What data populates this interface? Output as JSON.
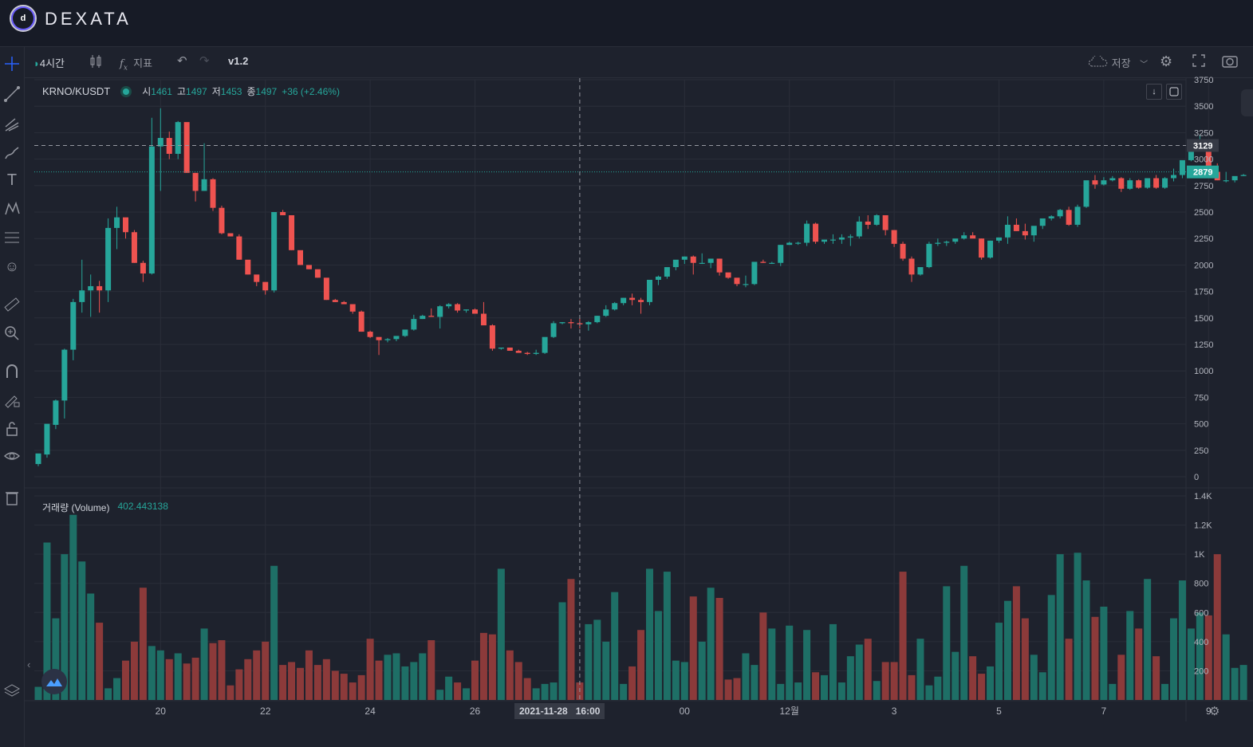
{
  "brand": {
    "logo_mark": "d",
    "name": "DEXATA"
  },
  "toolbar": {
    "interval": "4시간",
    "indicators_label": "지표",
    "version": "v1.2",
    "save_label": "저장",
    "icons": [
      "candles-icon",
      "fx-icon",
      "undo-icon",
      "redo-icon",
      "cloud-icon",
      "gear-icon",
      "fullscreen-icon",
      "camera-icon"
    ]
  },
  "left_tools": [
    "crosshair-icon",
    "trendline-icon",
    "pitchfork-icon",
    "brush-icon",
    "text-icon",
    "pattern-icon",
    "fib-icon",
    "emoji-icon",
    "ruler-icon",
    "zoom-in-icon",
    "magnet-icon",
    "pencil-lock-icon",
    "lock-icon",
    "eye-icon",
    "trash-icon",
    "layers-icon"
  ],
  "legend": {
    "symbol": "KRNO/KUSDT",
    "o_label": "시",
    "o": "1461",
    "h_label": "고",
    "h": "1497",
    "l_label": "저",
    "l": "1453",
    "c_label": "종",
    "c": "1497",
    "change": "+36 (+2.46%)"
  },
  "volume_legend": {
    "name": "거래량 (Volume)",
    "value": "402.443138"
  },
  "crosshair": {
    "date": "2021-11-28",
    "time": "16:00",
    "price_label": "3129",
    "price": 3129
  },
  "last_price": {
    "label": "2879",
    "price": 2879
  },
  "colors": {
    "up": "#26a69a",
    "down": "#ef5350",
    "up_vol": "#1e6f66",
    "down_vol": "#8c3a3a",
    "bg": "#1e222d",
    "grid": "#2a2e39"
  },
  "chart_data": {
    "type": "candlestick",
    "price_axis": {
      "ticks": [
        0,
        250,
        500,
        750,
        1000,
        1250,
        1500,
        1750,
        2000,
        2250,
        2500,
        2750,
        3000,
        3250,
        3500,
        3750
      ],
      "range": [
        0,
        3750
      ]
    },
    "volume_axis": {
      "ticks": [
        200,
        400,
        600,
        800,
        1000,
        1200,
        1400
      ],
      "tick_labels": [
        "200",
        "400",
        "600",
        "800",
        "1K",
        "1.2K",
        "1.4K"
      ],
      "range": [
        0,
        1400
      ]
    },
    "x_axis": {
      "ticks": [
        {
          "bar": 14,
          "label": "20"
        },
        {
          "bar": 26,
          "label": "22"
        },
        {
          "bar": 38,
          "label": "24"
        },
        {
          "bar": 50,
          "label": "26"
        },
        {
          "bar": 74,
          "label": "00"
        },
        {
          "bar": 86,
          "label": "12월"
        },
        {
          "bar": 98,
          "label": "3"
        },
        {
          "bar": 110,
          "label": "5"
        },
        {
          "bar": 122,
          "label": "7"
        },
        {
          "bar": 134,
          "label": "9"
        }
      ]
    },
    "crosshair_bar": 62,
    "bars": [
      [
        120,
        210,
        100,
        220,
        90
      ],
      [
        210,
        490,
        180,
        500,
        1080
      ],
      [
        490,
        730,
        450,
        720,
        560
      ],
      [
        720,
        1210,
        550,
        1200,
        1000
      ],
      [
        1200,
        1680,
        1100,
        1650,
        1270
      ],
      [
        1650,
        2050,
        1550,
        1760,
        950
      ],
      [
        1760,
        1910,
        1510,
        1800,
        730
      ],
      [
        1800,
        1850,
        1550,
        1760,
        530
      ],
      [
        1760,
        2440,
        1650,
        2350,
        80
      ],
      [
        2350,
        2550,
        2150,
        2450,
        150
      ],
      [
        2450,
        2370,
        2250,
        2310,
        270
      ],
      [
        2310,
        2330,
        2020,
        2020,
        400
      ],
      [
        2020,
        2040,
        1840,
        1920,
        770
      ],
      [
        1920,
        3390,
        1910,
        3120,
        370
      ],
      [
        3120,
        3480,
        2700,
        3200,
        340
      ],
      [
        3200,
        3260,
        3000,
        3050,
        280
      ],
      [
        3050,
        3360,
        3000,
        3350,
        320
      ],
      [
        3350,
        3320,
        2880,
        2870,
        250
      ],
      [
        2870,
        2850,
        2600,
        2700,
        290
      ],
      [
        2700,
        3150,
        2700,
        2810,
        490
      ],
      [
        2810,
        2820,
        2510,
        2540,
        390
      ],
      [
        2540,
        2560,
        2290,
        2300,
        410
      ],
      [
        2300,
        2290,
        2270,
        2270,
        100
      ],
      [
        2270,
        2290,
        2050,
        2050,
        210
      ],
      [
        2050,
        2010,
        1910,
        1910,
        280
      ],
      [
        1910,
        1870,
        1800,
        1840,
        340
      ],
      [
        1840,
        1780,
        1720,
        1760,
        400
      ],
      [
        1760,
        2500,
        1740,
        2500,
        920
      ],
      [
        2500,
        2520,
        2470,
        2470,
        240
      ],
      [
        2470,
        2460,
        2140,
        2140,
        260
      ],
      [
        2140,
        2130,
        2000,
        2000,
        220
      ],
      [
        2000,
        1990,
        1960,
        1960,
        340
      ],
      [
        1960,
        1900,
        1880,
        1880,
        240
      ],
      [
        1880,
        1820,
        1670,
        1670,
        280
      ],
      [
        1670,
        1680,
        1650,
        1650,
        200
      ],
      [
        1650,
        1660,
        1630,
        1630,
        180
      ],
      [
        1630,
        1610,
        1540,
        1560,
        120
      ],
      [
        1560,
        1570,
        1370,
        1370,
        170
      ],
      [
        1370,
        1380,
        1310,
        1320,
        420
      ],
      [
        1320,
        1300,
        1150,
        1290,
        270
      ],
      [
        1290,
        1310,
        1270,
        1300,
        310
      ],
      [
        1300,
        1320,
        1280,
        1330,
        320
      ],
      [
        1330,
        1380,
        1320,
        1390,
        230
      ],
      [
        1390,
        1530,
        1380,
        1490,
        260
      ],
      [
        1490,
        1530,
        1490,
        1520,
        320
      ],
      [
        1520,
        1590,
        1510,
        1510,
        410
      ],
      [
        1510,
        1620,
        1400,
        1610,
        70
      ],
      [
        1610,
        1640,
        1590,
        1630,
        160
      ],
      [
        1630,
        1640,
        1550,
        1570,
        120
      ],
      [
        1570,
        1580,
        1550,
        1580,
        80
      ],
      [
        1580,
        1590,
        1570,
        1540,
        270
      ],
      [
        1540,
        1650,
        1490,
        1430,
        460
      ],
      [
        1430,
        1440,
        1190,
        1210,
        450
      ],
      [
        1210,
        1220,
        1200,
        1220,
        900
      ],
      [
        1220,
        1220,
        1200,
        1190,
        340
      ],
      [
        1190,
        1200,
        1180,
        1170,
        260
      ],
      [
        1170,
        1180,
        1150,
        1160,
        150
      ],
      [
        1160,
        1200,
        1150,
        1170,
        80
      ],
      [
        1170,
        1310,
        1160,
        1320,
        110
      ],
      [
        1320,
        1470,
        1310,
        1450,
        120
      ],
      [
        1450,
        1460,
        1440,
        1460,
        670
      ],
      [
        1460,
        1490,
        1400,
        1450,
        830
      ],
      [
        1450,
        1500,
        1400,
        1440,
        120
      ],
      [
        1440,
        1470,
        1380,
        1460,
        520
      ],
      [
        1460,
        1520,
        1450,
        1520,
        550
      ],
      [
        1520,
        1620,
        1510,
        1580,
        400
      ],
      [
        1580,
        1650,
        1570,
        1640,
        740
      ],
      [
        1640,
        1690,
        1620,
        1690,
        110
      ],
      [
        1690,
        1730,
        1620,
        1670,
        230
      ],
      [
        1670,
        1690,
        1540,
        1650,
        480
      ],
      [
        1650,
        1860,
        1620,
        1860,
        900
      ],
      [
        1860,
        1900,
        1810,
        1890,
        610
      ],
      [
        1890,
        1960,
        1870,
        1980,
        880
      ],
      [
        1980,
        2040,
        1950,
        2050,
        270
      ],
      [
        2050,
        2080,
        2010,
        2080,
        260
      ],
      [
        2080,
        2090,
        1910,
        2020,
        710
      ],
      [
        2020,
        2110,
        2010,
        2020,
        400
      ],
      [
        2020,
        2040,
        1970,
        2060,
        770
      ],
      [
        2060,
        2060,
        1900,
        1930,
        700
      ],
      [
        1930,
        1920,
        1870,
        1880,
        140
      ],
      [
        1880,
        1870,
        1800,
        1820,
        150
      ],
      [
        1820,
        1900,
        1790,
        1820,
        320
      ],
      [
        1820,
        2010,
        1810,
        2030,
        240
      ],
      [
        2030,
        2050,
        2020,
        2020,
        600
      ],
      [
        2020,
        2030,
        2010,
        2020,
        490
      ],
      [
        2020,
        2190,
        1990,
        2190,
        110
      ],
      [
        2190,
        2220,
        2190,
        2210,
        510
      ],
      [
        2210,
        2220,
        2190,
        2210,
        120
      ],
      [
        2210,
        2420,
        2180,
        2390,
        480
      ],
      [
        2390,
        2400,
        2200,
        2220,
        190
      ],
      [
        2220,
        2240,
        2200,
        2240,
        170
      ],
      [
        2240,
        2290,
        2200,
        2240,
        520
      ],
      [
        2240,
        2290,
        2200,
        2260,
        120
      ],
      [
        2260,
        2290,
        2180,
        2270,
        300
      ],
      [
        2270,
        2460,
        2250,
        2410,
        380
      ],
      [
        2410,
        2470,
        2340,
        2380,
        420
      ],
      [
        2380,
        2480,
        2370,
        2470,
        130
      ],
      [
        2470,
        2470,
        2280,
        2330,
        260
      ],
      [
        2330,
        2330,
        2170,
        2200,
        260
      ],
      [
        2200,
        2220,
        2040,
        2060,
        880
      ],
      [
        2060,
        2080,
        1840,
        1910,
        170
      ],
      [
        1910,
        1970,
        1900,
        1980,
        420
      ],
      [
        1980,
        2220,
        1970,
        2200,
        100
      ],
      [
        2200,
        2250,
        2180,
        2210,
        160
      ],
      [
        2210,
        2230,
        2180,
        2220,
        780
      ],
      [
        2220,
        2240,
        2200,
        2250,
        330
      ],
      [
        2250,
        2310,
        2240,
        2280,
        920
      ],
      [
        2280,
        2310,
        2260,
        2250,
        300
      ],
      [
        2250,
        2250,
        2050,
        2070,
        180
      ],
      [
        2070,
        2230,
        2060,
        2230,
        230
      ],
      [
        2230,
        2250,
        2210,
        2260,
        530
      ],
      [
        2260,
        2460,
        2200,
        2380,
        680
      ],
      [
        2380,
        2440,
        2320,
        2320,
        780
      ],
      [
        2320,
        2390,
        2240,
        2280,
        560
      ],
      [
        2280,
        2310,
        2220,
        2370,
        310
      ],
      [
        2370,
        2390,
        2340,
        2440,
        190
      ],
      [
        2440,
        2470,
        2420,
        2460,
        720
      ],
      [
        2460,
        2530,
        2440,
        2520,
        1000
      ],
      [
        2520,
        2550,
        2370,
        2380,
        420
      ],
      [
        2380,
        2570,
        2360,
        2550,
        1010
      ],
      [
        2550,
        2790,
        2540,
        2800,
        820
      ],
      [
        2800,
        2850,
        2720,
        2760,
        570
      ],
      [
        2760,
        2830,
        2750,
        2800,
        640
      ],
      [
        2800,
        2840,
        2790,
        2820,
        110
      ],
      [
        2820,
        2830,
        2690,
        2720,
        310
      ],
      [
        2720,
        2820,
        2710,
        2800,
        610
      ],
      [
        2800,
        2810,
        2720,
        2730,
        490
      ],
      [
        2730,
        2820,
        2720,
        2820,
        830
      ],
      [
        2820,
        2850,
        2720,
        2730,
        300
      ],
      [
        2730,
        2830,
        2720,
        2820,
        110
      ],
      [
        2820,
        2910,
        2790,
        2850,
        560
      ],
      [
        2850,
        2980,
        2820,
        2990,
        820
      ],
      [
        2990,
        3160,
        2980,
        3160,
        490
      ],
      [
        3160,
        3230,
        3150,
        3170,
        600
      ],
      [
        3170,
        3180,
        3150,
        2880,
        580
      ],
      [
        2880,
        2960,
        2800,
        2800,
        1000
      ],
      [
        2800,
        2880,
        2780,
        2800,
        450
      ],
      [
        2800,
        2830,
        2780,
        2840,
        220
      ],
      [
        2840,
        2860,
        2840,
        2850,
        240
      ]
    ]
  }
}
